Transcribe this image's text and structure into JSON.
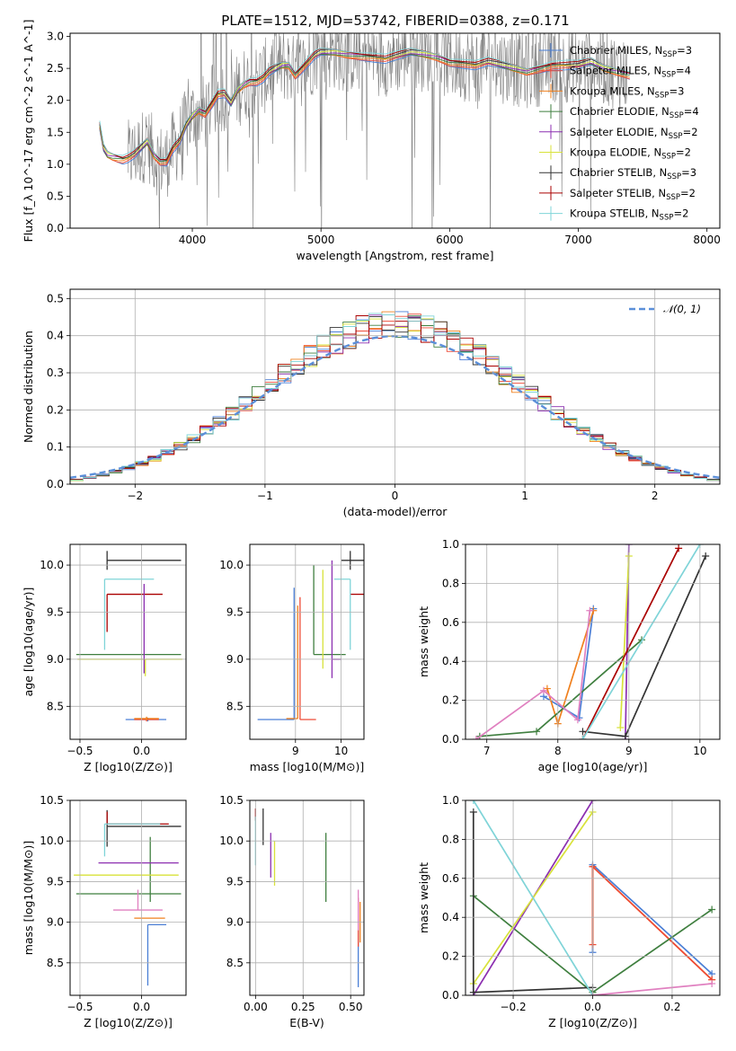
{
  "figure_title": "PLATE=1512, MJD=53742, FIBERID=0388, z=0.171",
  "colors": {
    "chabrier_miles": "#4a7fd6",
    "salpeter_miles": "#ee4a36",
    "kroupa_miles": "#f0801e",
    "chabrier_elodie": "#3f7f3f",
    "salpeter_elodie": "#8c2fb0",
    "kroupa_elodie": "#d8e23a",
    "chabrier_stelib": "#333333",
    "salpeter_stelib": "#aa0000",
    "kroupa_stelib": "#7fd4d8",
    "data": "#808080",
    "gaussian": "#5b8fd9"
  },
  "chart_data": [
    {
      "id": "spectrum",
      "type": "line",
      "xlabel": "wavelength [Angstrom, rest frame]",
      "ylabel": "Flux [f_λ 10^-17 erg cm^-2 s^-1 A^-1]",
      "xlim": [
        3050,
        8100
      ],
      "ylim": [
        0,
        3.05
      ],
      "xticks": [
        "4000",
        "5000",
        "6000",
        "7000",
        "8000"
      ],
      "yticks": [
        "0.0",
        "0.5",
        "1.0",
        "1.5",
        "2.0",
        "2.5",
        "3.0"
      ],
      "legend_position": "right",
      "legend": [
        {
          "label": "Chabrier MILES, N",
          "sub": "SSP",
          "tail": "=3",
          "color": "#4a7fd6"
        },
        {
          "label": "Salpeter MILES, N",
          "sub": "SSP",
          "tail": "=4",
          "color": "#ee4a36"
        },
        {
          "label": "Kroupa MILES, N",
          "sub": "SSP",
          "tail": "=3",
          "color": "#f0801e"
        },
        {
          "label": "Chabrier ELODIE, N",
          "sub": "SSP",
          "tail": "=4",
          "color": "#3f7f3f"
        },
        {
          "label": "Salpeter ELODIE, N",
          "sub": "SSP",
          "tail": "=2",
          "color": "#8c2fb0"
        },
        {
          "label": "Kroupa ELODIE, N",
          "sub": "SSP",
          "tail": "=2",
          "color": "#d8e23a"
        },
        {
          "label": "Chabrier STELIB, N",
          "sub": "SSP",
          "tail": "=3",
          "color": "#333333"
        },
        {
          "label": "Salpeter STELIB, N",
          "sub": "SSP",
          "tail": "=2",
          "color": "#aa0000"
        },
        {
          "label": "Kroupa STELIB, N",
          "sub": "SSP",
          "tail": "=2",
          "color": "#7fd4d8"
        }
      ],
      "model_curve": {
        "x": [
          3280,
          3310,
          3340,
          3380,
          3420,
          3460,
          3500,
          3550,
          3600,
          3650,
          3700,
          3750,
          3800,
          3850,
          3900,
          3950,
          4000,
          4050,
          4100,
          4150,
          4200,
          4250,
          4300,
          4350,
          4400,
          4450,
          4500,
          4550,
          4600,
          4650,
          4700,
          4750,
          4800,
          4850,
          4900,
          4950,
          5000,
          5100,
          5200,
          5300,
          5400,
          5500,
          5600,
          5700,
          5800,
          5900,
          6000,
          6100,
          6200,
          6300,
          6400,
          6500,
          6600,
          6700,
          6800,
          6900,
          7000,
          7100,
          7200,
          7300,
          7400
        ],
        "y": [
          1.6,
          1.25,
          1.15,
          1.12,
          1.1,
          1.08,
          1.1,
          1.15,
          1.25,
          1.35,
          1.15,
          1.05,
          1.05,
          1.25,
          1.35,
          1.6,
          1.75,
          1.85,
          1.8,
          1.95,
          2.1,
          2.1,
          1.95,
          2.15,
          2.25,
          2.3,
          2.3,
          2.35,
          2.45,
          2.5,
          2.55,
          2.55,
          2.4,
          2.5,
          2.6,
          2.7,
          2.75,
          2.75,
          2.72,
          2.7,
          2.68,
          2.65,
          2.7,
          2.75,
          2.72,
          2.68,
          2.6,
          2.58,
          2.55,
          2.6,
          2.55,
          2.5,
          2.45,
          2.5,
          2.55,
          2.55,
          2.55,
          2.6,
          2.5,
          2.45,
          2.4
        ]
      },
      "data_range": {
        "start": 3500,
        "end": 7380,
        "noise_level": 0.6
      }
    },
    {
      "id": "residual_hist",
      "type": "area",
      "xlabel": "(data-model)/error",
      "ylabel": "Normed distribution",
      "xlim": [
        -2.5,
        2.5
      ],
      "ylim": [
        0,
        0.525
      ],
      "xticks": [
        "−2",
        "−1",
        "0",
        "1",
        "2"
      ],
      "yticks": [
        "0.0",
        "0.1",
        "0.2",
        "0.3",
        "0.4",
        "0.5"
      ],
      "legend_label": "𝒩(0, 1)",
      "legend_position": "top-right",
      "grid": true,
      "gaussian": {
        "mean": 0,
        "sigma": 1
      },
      "bin_width": 0.1
    },
    {
      "id": "age_vs_Z",
      "type": "scatter",
      "xlabel": "Z [log10(Z/Z⊙)]",
      "ylabel": "age [log10(age/yr)]",
      "xlim": [
        -0.58,
        0.36
      ],
      "ylim": [
        8.15,
        10.22
      ],
      "xticks": [
        "−0.5",
        "0.0"
      ],
      "yticks": [
        "8.5",
        "9.0",
        "9.5",
        "10.0"
      ],
      "grid": true,
      "points": [
        {
          "model": "chabrier_miles",
          "x": 0.05,
          "xerr": [
            0.18,
            0.15
          ],
          "y": 8.36,
          "yerr": [
            0.02,
            0.02
          ]
        },
        {
          "model": "salpeter_miles",
          "x": 0.04,
          "xerr": [
            0.1,
            0.1
          ],
          "y": 8.36,
          "yerr": [
            0.02,
            0.02
          ]
        },
        {
          "model": "kroupa_miles",
          "x": 0.04,
          "xerr": [
            0.1,
            0.1
          ],
          "y": 8.37,
          "yerr": [
            0.02,
            0.02
          ]
        },
        {
          "model": "chabrier_elodie",
          "x": 0.07,
          "xerr": [
            0.6,
            0.25
          ],
          "y": 9.05,
          "yerr": [
            0.0,
            0.0
          ]
        },
        {
          "model": "kroupa_elodie",
          "x": 0.03,
          "xerr": [
            0.55,
            0.3
          ],
          "y": 9.0,
          "yerr": [
            0.18,
            0.0
          ]
        },
        {
          "model": "chabrier_stelib",
          "x": -0.28,
          "xerr": [
            0.0,
            0.6
          ],
          "y": 10.05,
          "yerr": [
            0.1,
            0.1
          ]
        },
        {
          "model": "salpeter_stelib",
          "x": -0.28,
          "xerr": [
            0.0,
            0.45
          ],
          "y": 9.69,
          "yerr": [
            0.4,
            0.0
          ]
        },
        {
          "model": "kroupa_stelib",
          "x": -0.3,
          "xerr": [
            0.0,
            0.4
          ],
          "y": 9.85,
          "yerr": [
            0.75,
            0.0
          ]
        },
        {
          "model": "salpeter_elodie",
          "x": 0.02,
          "xerr": [
            0.0,
            0.0
          ],
          "y": 8.85,
          "yerr": [
            0.0,
            0.95
          ]
        }
      ]
    },
    {
      "id": "age_vs_mass",
      "type": "scatter",
      "xlabel": "mass [log10(M/M⊙)]",
      "ylabel": "",
      "xlim": [
        8.0,
        10.5
      ],
      "ylim": [
        8.15,
        10.22
      ],
      "xticks": [
        "9",
        "10"
      ],
      "yticks": [
        "8.5",
        "9.0",
        "9.5",
        "10.0"
      ],
      "grid": true,
      "points": [
        {
          "model": "chabrier_miles",
          "x": 8.97,
          "xerr": [
            0.8,
            0.0
          ],
          "y": 8.36,
          "yerr": [
            0.0,
            1.4
          ]
        },
        {
          "model": "salpeter_miles",
          "x": 9.1,
          "xerr": [
            0.0,
            0.35
          ],
          "y": 8.36,
          "yerr": [
            0.0,
            1.3
          ]
        },
        {
          "model": "kroupa_miles",
          "x": 9.05,
          "xerr": [
            0.25,
            0.0
          ],
          "y": 8.37,
          "yerr": [
            0.0,
            1.2
          ]
        },
        {
          "model": "chabrier_elodie",
          "x": 9.4,
          "xerr": [
            0.0,
            0.7
          ],
          "y": 9.05,
          "yerr": [
            0.0,
            0.95
          ]
        },
        {
          "model": "salpeter_elodie",
          "x": 9.8,
          "xerr": [
            0.0,
            0.2
          ],
          "y": 9.0,
          "yerr": [
            0.2,
            1.05
          ]
        },
        {
          "model": "kroupa_elodie",
          "x": 9.6,
          "xerr": [
            0.0,
            0.0
          ],
          "y": 9.0,
          "yerr": [
            0.1,
            0.95
          ]
        },
        {
          "model": "chabrier_stelib",
          "x": 10.2,
          "xerr": [
            0.2,
            0.3
          ],
          "y": 10.05,
          "yerr": [
            0.1,
            0.1
          ]
        },
        {
          "model": "salpeter_stelib",
          "x": 10.2,
          "xerr": [
            0.0,
            0.3
          ],
          "y": 9.69,
          "yerr": [
            0.0,
            0.0
          ]
        },
        {
          "model": "kroupa_stelib",
          "x": 10.2,
          "xerr": [
            0.35,
            0.0
          ],
          "y": 9.85,
          "yerr": [
            0.75,
            0.0
          ]
        }
      ]
    },
    {
      "id": "weight_vs_age",
      "type": "line",
      "xlabel": "age [log10(age/yr)]",
      "ylabel": "mass weight",
      "xlim": [
        6.7,
        10.28
      ],
      "ylim": [
        0,
        1.0
      ],
      "xticks": [
        "7",
        "8",
        "9",
        "10"
      ],
      "yticks": [
        "0.0",
        "0.2",
        "0.4",
        "0.6",
        "0.8",
        "1.0"
      ],
      "grid": true,
      "series": [
        {
          "model": "chabrier_miles",
          "x": [
            7.8,
            8.3,
            8.5
          ],
          "y": [
            0.22,
            0.11,
            0.67
          ]
        },
        {
          "model": "kroupa_miles",
          "x": [
            7.85,
            8.0,
            8.5
          ],
          "y": [
            0.26,
            0.08,
            0.66
          ]
        },
        {
          "model": "chabrier_elodie",
          "x": [
            6.9,
            7.7,
            9.18
          ],
          "y": [
            0.015,
            0.04,
            0.51
          ]
        },
        {
          "model": "salpeter_elodie",
          "x": [
            8.95,
            9.0
          ],
          "y": [
            0.0,
            1.0
          ]
        },
        {
          "model": "kroupa_elodie",
          "x": [
            8.88,
            9.0
          ],
          "y": [
            0.06,
            0.94
          ]
        },
        {
          "model": "chabrier_stelib",
          "x": [
            8.35,
            8.95,
            10.08
          ],
          "y": [
            0.04,
            0.015,
            0.94
          ]
        },
        {
          "model": "salpeter_stelib",
          "x": [
            8.35,
            9.7
          ],
          "y": [
            0.0,
            0.98
          ]
        },
        {
          "model": "kroupa_stelib",
          "x": [
            8.35,
            10.0
          ],
          "y": [
            0.0,
            1.0
          ]
        },
        {
          "model": "pink",
          "x": [
            6.85,
            7.8,
            8.28,
            8.45
          ],
          "y": [
            0.0,
            0.25,
            0.1,
            0.66
          ]
        }
      ]
    },
    {
      "id": "mass_vs_Z",
      "type": "scatter",
      "xlabel": "Z [log10(Z/Z⊙)]",
      "ylabel": "mass [log10(M/M⊙)]",
      "xlim": [
        -0.58,
        0.36
      ],
      "ylim": [
        8.1,
        10.5
      ],
      "xticks": [
        "−0.5",
        "0.0"
      ],
      "yticks": [
        "8.5",
        "9.0",
        "9.5",
        "10.0",
        "10.5"
      ],
      "grid": true,
      "points": [
        {
          "model": "chabrier_miles",
          "x": 0.05,
          "xerr": [
            0.0,
            0.15
          ],
          "y": 8.97,
          "yerr": [
            0.75,
            0.0
          ]
        },
        {
          "model": "kroupa_miles",
          "x": 0.04,
          "xerr": [
            0.1,
            0.15
          ],
          "y": 9.05,
          "yerr": [
            0.0,
            0.0
          ]
        },
        {
          "model": "chabrier_elodie",
          "x": 0.07,
          "xerr": [
            0.6,
            0.25
          ],
          "y": 9.35,
          "yerr": [
            0.1,
            0.7
          ]
        },
        {
          "model": "salpeter_elodie",
          "x": 0.0,
          "xerr": [
            0.35,
            0.3
          ],
          "y": 9.73,
          "yerr": [
            0.0,
            0.0
          ]
        },
        {
          "model": "kroupa_elodie",
          "x": 0.0,
          "xerr": [
            0.55,
            0.3
          ],
          "y": 9.58,
          "yerr": [
            0.0,
            0.0
          ]
        },
        {
          "model": "chabrier_stelib",
          "x": -0.28,
          "xerr": [
            0.0,
            0.6
          ],
          "y": 10.18,
          "yerr": [
            0.25,
            0.2
          ]
        },
        {
          "model": "salpeter_stelib",
          "x": -0.28,
          "xerr": [
            0.0,
            0.5
          ],
          "y": 10.21,
          "yerr": [
            0.0,
            0.15
          ]
        },
        {
          "model": "kroupa_stelib",
          "x": -0.3,
          "xerr": [
            0.0,
            0.45
          ],
          "y": 10.21,
          "yerr": [
            0.4,
            0.0
          ]
        },
        {
          "model": "pink",
          "x": -0.03,
          "xerr": [
            0.2,
            0.2
          ],
          "y": 9.15,
          "yerr": [
            0.0,
            0.25
          ]
        }
      ]
    },
    {
      "id": "mass_vs_ebv",
      "type": "scatter",
      "xlabel": "E(B-V)",
      "ylabel": "",
      "xlim": [
        -0.03,
        0.57
      ],
      "ylim": [
        8.1,
        10.5
      ],
      "xticks": [
        "0.00",
        "0.25",
        "0.50"
      ],
      "yticks": [
        "8.5",
        "9.0",
        "9.5",
        "10.0",
        "10.5"
      ],
      "grid": true,
      "points": [
        {
          "model": "chabrier_miles",
          "x": 0.54,
          "yseg": [
            8.2,
            8.9
          ]
        },
        {
          "model": "salpeter_miles",
          "x": 0.54,
          "yseg": [
            8.7,
            9.3
          ]
        },
        {
          "model": "kroupa_miles",
          "x": 0.55,
          "yseg": [
            8.75,
            9.25
          ]
        },
        {
          "model": "chabrier_elodie",
          "x": 0.37,
          "yseg": [
            9.25,
            10.1
          ]
        },
        {
          "model": "salpeter_elodie",
          "x": 0.08,
          "yseg": [
            9.55,
            10.1
          ]
        },
        {
          "model": "kroupa_elodie",
          "x": 0.1,
          "yseg": [
            9.45,
            10.0
          ]
        },
        {
          "model": "chabrier_stelib",
          "x": 0.04,
          "yseg": [
            9.95,
            10.4
          ]
        },
        {
          "model": "salpeter_stelib",
          "x": 0.0,
          "yseg": [
            10.25,
            10.4
          ]
        },
        {
          "model": "kroupa_stelib",
          "x": 0.0,
          "yseg": [
            9.7,
            10.3
          ]
        },
        {
          "model": "pink",
          "x": 0.54,
          "yseg": [
            8.9,
            9.4
          ]
        }
      ]
    },
    {
      "id": "weight_vs_Z",
      "type": "line",
      "xlabel": "Z [log10(Z/Z⊙)]",
      "ylabel": "mass weight",
      "xlim": [
        -0.32,
        0.32
      ],
      "ylim": [
        0,
        1.0
      ],
      "xticks": [
        "−0.2",
        "0.0",
        "0.2"
      ],
      "yticks": [
        "0.0",
        "0.2",
        "0.4",
        "0.6",
        "0.8",
        "1.0"
      ],
      "grid": true,
      "series": [
        {
          "model": "chabrier_miles",
          "x": [
            0.0,
            0.0,
            0.3
          ],
          "y": [
            0.22,
            0.67,
            0.11
          ]
        },
        {
          "model": "kroupa_miles",
          "x": [
            0.0,
            0.0,
            0.3
          ],
          "y": [
            0.26,
            0.66,
            0.08
          ]
        },
        {
          "model": "salpeter_miles",
          "x": [
            0.0,
            0.0,
            0.3
          ],
          "y": [
            0.26,
            0.66,
            0.08
          ]
        },
        {
          "model": "chabrier_elodie",
          "x": [
            -0.3,
            0.0,
            0.3
          ],
          "y": [
            0.51,
            0.015,
            0.44
          ]
        },
        {
          "model": "salpeter_elodie",
          "x": [
            -0.3,
            0.0
          ],
          "y": [
            0.0,
            1.0
          ]
        },
        {
          "model": "kroupa_elodie",
          "x": [
            -0.3,
            0.0
          ],
          "y": [
            0.06,
            0.94
          ]
        },
        {
          "model": "chabrier_stelib",
          "x": [
            -0.3,
            -0.3,
            0.0
          ],
          "y": [
            0.94,
            0.015,
            0.04
          ]
        },
        {
          "model": "kroupa_stelib",
          "x": [
            -0.3,
            0.0
          ],
          "y": [
            1.0,
            0.0
          ]
        },
        {
          "model": "pink",
          "x": [
            0.0,
            0.3
          ],
          "y": [
            0.0,
            0.06
          ]
        }
      ]
    }
  ]
}
